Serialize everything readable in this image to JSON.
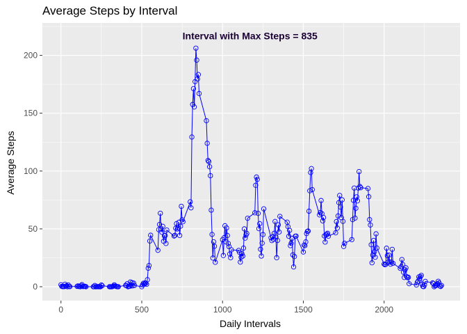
{
  "chart_data": {
    "type": "line",
    "title": "Average Steps by Interval",
    "xlabel": "Daily Intervals",
    "ylabel": "Average Steps",
    "xlim": [
      -115,
      2470
    ],
    "ylim": [
      -12,
      228
    ],
    "x_ticks": [
      0,
      500,
      1000,
      1500,
      2000
    ],
    "y_ticks": [
      0,
      50,
      100,
      150,
      200
    ],
    "grid": true,
    "annotation": {
      "text": "Interval with Max Steps = 835",
      "x": 1170,
      "y": 217
    },
    "colors": {
      "panel": "#ebebeb",
      "grid": "#ffffff",
      "series": "#0000ff"
    },
    "series": [
      {
        "marker": "open-circle",
        "points": [
          [
            0,
            1.7
          ],
          [
            5,
            0.3
          ],
          [
            10,
            0.1
          ],
          [
            15,
            0.2
          ],
          [
            20,
            0.1
          ],
          [
            25,
            2.1
          ],
          [
            30,
            0.5
          ],
          [
            35,
            0.9
          ],
          [
            40,
            0
          ],
          [
            45,
            1.5
          ],
          [
            50,
            0.3
          ],
          [
            55,
            0.1
          ],
          [
            100,
            0.3
          ],
          [
            105,
            0.7
          ],
          [
            110,
            0.2
          ],
          [
            115,
            0.3
          ],
          [
            120,
            0
          ],
          [
            125,
            1.1
          ],
          [
            130,
            1.8
          ],
          [
            135,
            0.2
          ],
          [
            140,
            0.2
          ],
          [
            145,
            0.4
          ],
          [
            150,
            0.3
          ],
          [
            155,
            0
          ],
          [
            200,
            0
          ],
          [
            205,
            0
          ],
          [
            210,
            1.1
          ],
          [
            215,
            0
          ],
          [
            220,
            0
          ],
          [
            225,
            0.1
          ],
          [
            230,
            0
          ],
          [
            235,
            0.2
          ],
          [
            240,
            0
          ],
          [
            245,
            0
          ],
          [
            250,
            1.5
          ],
          [
            255,
            0.9
          ],
          [
            300,
            0
          ],
          [
            305,
            0
          ],
          [
            310,
            0
          ],
          [
            315,
            0
          ],
          [
            320,
            0.2
          ],
          [
            325,
            0.6
          ],
          [
            330,
            1.6
          ],
          [
            335,
            0.6
          ],
          [
            340,
            0.5
          ],
          [
            345,
            0.1
          ],
          [
            350,
            0
          ],
          [
            355,
            0
          ],
          [
            400,
            1.2
          ],
          [
            405,
            0.9
          ],
          [
            410,
            2.6
          ],
          [
            415,
            0
          ],
          [
            420,
            0.3
          ],
          [
            425,
            0.4
          ],
          [
            430,
            4.1
          ],
          [
            435,
            0.7
          ],
          [
            440,
            3.5
          ],
          [
            445,
            0.8
          ],
          [
            450,
            3.1
          ],
          [
            455,
            1.1
          ],
          [
            500,
            0
          ],
          [
            505,
            1.6
          ],
          [
            510,
            3
          ],
          [
            515,
            2.2
          ],
          [
            520,
            3.3
          ],
          [
            525,
            3
          ],
          [
            530,
            2.1
          ],
          [
            535,
            6.1
          ],
          [
            540,
            16
          ],
          [
            545,
            18.3
          ],
          [
            550,
            39.5
          ],
          [
            555,
            44.5
          ],
          [
            600,
            31.5
          ],
          [
            605,
            49.3
          ],
          [
            610,
            53.8
          ],
          [
            615,
            63.5
          ],
          [
            620,
            50
          ],
          [
            625,
            47.1
          ],
          [
            630,
            52.2
          ],
          [
            635,
            39.3
          ],
          [
            640,
            44
          ],
          [
            645,
            44.2
          ],
          [
            650,
            37.4
          ],
          [
            655,
            49
          ],
          [
            700,
            43.8
          ],
          [
            705,
            44.4
          ],
          [
            710,
            50.5
          ],
          [
            715,
            54.5
          ],
          [
            720,
            49.9
          ],
          [
            725,
            50.98
          ],
          [
            730,
            55.7
          ],
          [
            735,
            44.3
          ],
          [
            740,
            52.3
          ],
          [
            745,
            69.5
          ],
          [
            750,
            57.8
          ],
          [
            755,
            56.2
          ],
          [
            800,
            73.4
          ],
          [
            805,
            68.2
          ],
          [
            810,
            129.4
          ],
          [
            815,
            157.5
          ],
          [
            820,
            171.2
          ],
          [
            825,
            155.4
          ],
          [
            830,
            177.3
          ],
          [
            835,
            206.2
          ],
          [
            840,
            195.9
          ],
          [
            845,
            179.6
          ],
          [
            850,
            183.4
          ],
          [
            855,
            167
          ],
          [
            900,
            143.5
          ],
          [
            905,
            124
          ],
          [
            910,
            109.1
          ],
          [
            915,
            108.1
          ],
          [
            920,
            103.7
          ],
          [
            925,
            95.97
          ],
          [
            930,
            66.2
          ],
          [
            935,
            45.2
          ],
          [
            940,
            24.8
          ],
          [
            945,
            38.8
          ],
          [
            950,
            34.98
          ],
          [
            955,
            21.1
          ],
          [
            1000,
            40.6
          ],
          [
            1005,
            26.98
          ],
          [
            1010,
            42.4
          ],
          [
            1015,
            52.7
          ],
          [
            1020,
            38.9
          ],
          [
            1025,
            50.8
          ],
          [
            1030,
            44.3
          ],
          [
            1035,
            37.4
          ],
          [
            1040,
            34.7
          ],
          [
            1045,
            28.3
          ],
          [
            1050,
            25.1
          ],
          [
            1055,
            31.9
          ],
          [
            1100,
            31.4
          ],
          [
            1105,
            29.7
          ],
          [
            1110,
            21.3
          ],
          [
            1115,
            25.5
          ],
          [
            1120,
            28.4
          ],
          [
            1125,
            26.5
          ],
          [
            1130,
            33.4
          ],
          [
            1135,
            49.98
          ],
          [
            1140,
            42
          ],
          [
            1145,
            44.6
          ],
          [
            1150,
            46
          ],
          [
            1155,
            59.2
          ],
          [
            1200,
            63.9
          ],
          [
            1205,
            87.7
          ],
          [
            1210,
            94.8
          ],
          [
            1215,
            92.8
          ],
          [
            1220,
            63.4
          ],
          [
            1225,
            50.2
          ],
          [
            1230,
            54.5
          ],
          [
            1235,
            32.4
          ],
          [
            1240,
            26.5
          ],
          [
            1245,
            37.7
          ],
          [
            1250,
            45.1
          ],
          [
            1255,
            67.3
          ],
          [
            1300,
            42.3
          ],
          [
            1305,
            39.9
          ],
          [
            1310,
            43.3
          ],
          [
            1315,
            40.98
          ],
          [
            1320,
            46.2
          ],
          [
            1325,
            56.4
          ],
          [
            1330,
            42.8
          ],
          [
            1335,
            25.1
          ],
          [
            1340,
            39.97
          ],
          [
            1345,
            53.5
          ],
          [
            1350,
            47.3
          ],
          [
            1355,
            60.8
          ],
          [
            1400,
            55.8
          ],
          [
            1405,
            51.96
          ],
          [
            1410,
            43.6
          ],
          [
            1415,
            48.7
          ],
          [
            1420,
            35.5
          ],
          [
            1425,
            37.5
          ],
          [
            1430,
            41.8
          ],
          [
            1435,
            27.5
          ],
          [
            1440,
            17.1
          ],
          [
            1445,
            26.1
          ],
          [
            1450,
            43.6
          ],
          [
            1455,
            43.8
          ],
          [
            1500,
            30
          ],
          [
            1505,
            36.1
          ],
          [
            1510,
            35.5
          ],
          [
            1515,
            38.8
          ],
          [
            1520,
            45.96
          ],
          [
            1525,
            47.8
          ],
          [
            1530,
            48.1
          ],
          [
            1535,
            65.3
          ],
          [
            1540,
            82.9
          ],
          [
            1545,
            98.7
          ],
          [
            1550,
            102.1
          ],
          [
            1555,
            83.96
          ],
          [
            1600,
            62.1
          ],
          [
            1605,
            64.1
          ],
          [
            1610,
            74.5
          ],
          [
            1615,
            63.2
          ],
          [
            1620,
            56.9
          ],
          [
            1625,
            59.8
          ],
          [
            1630,
            43.9
          ],
          [
            1635,
            38.6
          ],
          [
            1640,
            44.7
          ],
          [
            1645,
            45.5
          ],
          [
            1650,
            46.2
          ],
          [
            1655,
            43.7
          ],
          [
            1700,
            46.6
          ],
          [
            1705,
            56.3
          ],
          [
            1710,
            50.7
          ],
          [
            1715,
            61.2
          ],
          [
            1720,
            72.7
          ],
          [
            1725,
            78.9
          ],
          [
            1730,
            68.9
          ],
          [
            1735,
            59.7
          ],
          [
            1740,
            75.1
          ],
          [
            1745,
            56.5
          ],
          [
            1750,
            34.8
          ],
          [
            1755,
            37.5
          ],
          [
            1800,
            40.7
          ],
          [
            1805,
            58
          ],
          [
            1810,
            74.7
          ],
          [
            1815,
            85.3
          ],
          [
            1820,
            59.3
          ],
          [
            1825,
            67.8
          ],
          [
            1830,
            77.7
          ],
          [
            1835,
            74.2
          ],
          [
            1840,
            85.3
          ],
          [
            1845,
            99.5
          ],
          [
            1850,
            86.6
          ],
          [
            1855,
            85.6
          ],
          [
            1900,
            84.9
          ],
          [
            1905,
            77.8
          ],
          [
            1910,
            58
          ],
          [
            1915,
            53.4
          ],
          [
            1920,
            36.3
          ],
          [
            1925,
            20.7
          ],
          [
            1930,
            27.4
          ],
          [
            1935,
            40
          ],
          [
            1940,
            30.2
          ],
          [
            1945,
            25.5
          ],
          [
            1950,
            45.7
          ],
          [
            1955,
            33.5
          ],
          [
            2000,
            19.6
          ],
          [
            2005,
            19
          ],
          [
            2010,
            19.3
          ],
          [
            2015,
            33.3
          ],
          [
            2020,
            26.8
          ],
          [
            2025,
            21.2
          ],
          [
            2030,
            27.3
          ],
          [
            2035,
            21.3
          ],
          [
            2040,
            19.5
          ],
          [
            2045,
            21.3
          ],
          [
            2050,
            32.3
          ],
          [
            2055,
            20.2
          ],
          [
            2100,
            15.9
          ],
          [
            2105,
            17.2
          ],
          [
            2110,
            23.5
          ],
          [
            2115,
            19.2
          ],
          [
            2120,
            12.5
          ],
          [
            2125,
            8
          ],
          [
            2130,
            14.7
          ],
          [
            2135,
            16.3
          ],
          [
            2140,
            8.7
          ],
          [
            2145,
            7.8
          ],
          [
            2150,
            8.1
          ],
          [
            2155,
            2.6
          ],
          [
            2200,
            1.5
          ],
          [
            2205,
            3.7
          ],
          [
            2210,
            4.8
          ],
          [
            2215,
            8.5
          ],
          [
            2220,
            7.1
          ],
          [
            2225,
            8.7
          ],
          [
            2230,
            9.8
          ],
          [
            2235,
            2.2
          ],
          [
            2240,
            0.3
          ],
          [
            2245,
            0.1
          ],
          [
            2250,
            1.6
          ],
          [
            2255,
            4.6
          ],
          [
            2300,
            3.3
          ],
          [
            2305,
            2.8
          ],
          [
            2310,
            0
          ],
          [
            2315,
            0.8
          ],
          [
            2320,
            1
          ],
          [
            2325,
            1.6
          ],
          [
            2330,
            2.6
          ],
          [
            2335,
            4.7
          ],
          [
            2340,
            3.3
          ],
          [
            2345,
            0.6
          ],
          [
            2350,
            0.2
          ],
          [
            2355,
            1.1
          ]
        ]
      }
    ]
  }
}
